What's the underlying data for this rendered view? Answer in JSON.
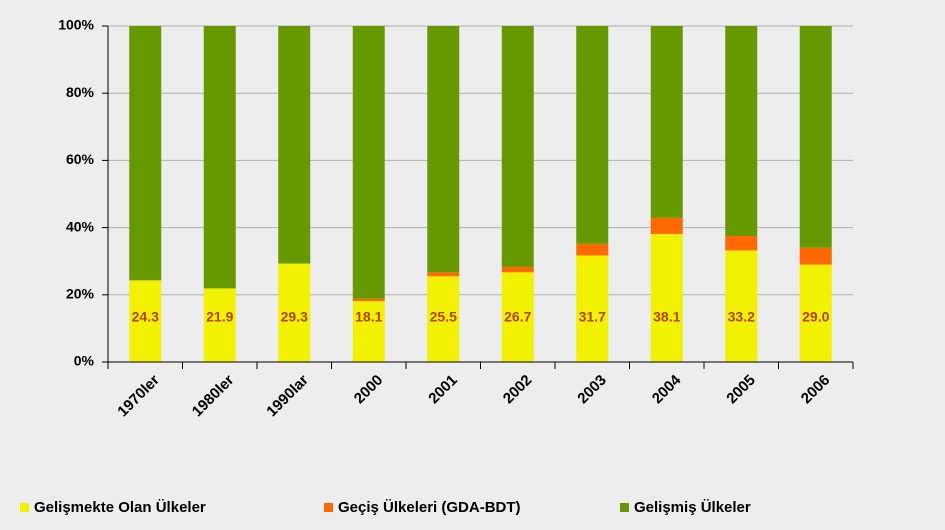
{
  "chart_data": {
    "type": "bar",
    "stacked": true,
    "categories": [
      "1970ler",
      "1980ler",
      "1990lar",
      "2000",
      "2001",
      "2002",
      "2003",
      "2004",
      "2005",
      "2006"
    ],
    "series": [
      {
        "name": "Gelişmekte Olan Ülkeler",
        "color": "#f2f200",
        "values": [
          24.3,
          21.9,
          29.3,
          18.1,
          25.5,
          26.7,
          31.7,
          38.1,
          33.2,
          29.0
        ],
        "value_labels": [
          "24.3",
          "21.9",
          "29.3",
          "18.1",
          "25.5",
          "26.7",
          "31.7",
          "38.1",
          "33.2",
          "29.0"
        ]
      },
      {
        "name": "Geçiş Ülkeleri (GDA-BDT)",
        "color": "#ff6a00",
        "values": [
          0,
          0,
          0,
          0.7,
          1.2,
          1.6,
          3.5,
          4.8,
          4.3,
          5.0
        ]
      },
      {
        "name": "Gelişmiş Ülkeler",
        "color": "#669900",
        "values": [
          75.7,
          78.1,
          70.7,
          81.2,
          73.3,
          71.7,
          64.8,
          57.1,
          62.5,
          66.0
        ]
      }
    ],
    "ylim": [
      0,
      100
    ],
    "yticks": [
      {
        "value": 0,
        "label": "0%"
      },
      {
        "value": 20,
        "label": "20%"
      },
      {
        "value": 40,
        "label": "40%"
      },
      {
        "value": 60,
        "label": "60%"
      },
      {
        "value": 80,
        "label": "80%"
      },
      {
        "value": 100,
        "label": "100%"
      }
    ],
    "grid": true,
    "legend": "bottom"
  }
}
